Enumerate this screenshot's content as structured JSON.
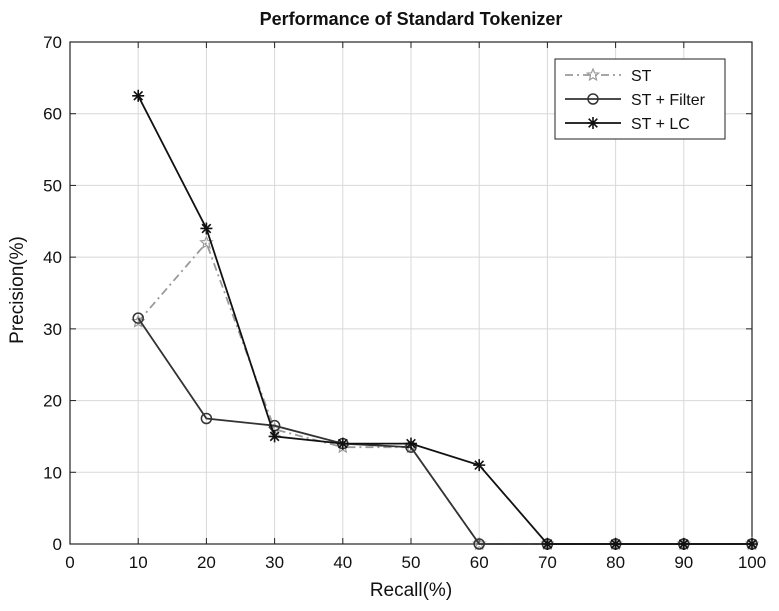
{
  "chart_data": {
    "type": "line",
    "title": "Performance of Standard Tokenizer",
    "xlabel": "Recall(%)",
    "ylabel": "Precision(%)",
    "xlim": [
      0,
      100
    ],
    "ylim": [
      0,
      70
    ],
    "x_ticks": [
      0,
      10,
      20,
      30,
      40,
      50,
      60,
      70,
      80,
      90,
      100
    ],
    "y_ticks": [
      0,
      10,
      20,
      30,
      40,
      50,
      60,
      70
    ],
    "grid": true,
    "legend_position": "top-right",
    "x": [
      10,
      20,
      30,
      40,
      50,
      60,
      70,
      80,
      90,
      100
    ],
    "series": [
      {
        "name": "ST",
        "marker": "star",
        "line_style": "dash-dot",
        "values": [
          31,
          42,
          16,
          13.5,
          13.5,
          0,
          0,
          0,
          0,
          0
        ]
      },
      {
        "name": "ST + Filter",
        "marker": "circle",
        "line_style": "solid",
        "values": [
          31.5,
          17.5,
          16.5,
          14,
          13.5,
          0,
          0,
          0,
          0,
          0
        ]
      },
      {
        "name": "ST + LC",
        "marker": "asterisk",
        "line_style": "solid",
        "values": [
          62.5,
          44,
          15,
          14,
          14,
          11,
          0,
          0,
          0,
          0
        ]
      }
    ]
  }
}
